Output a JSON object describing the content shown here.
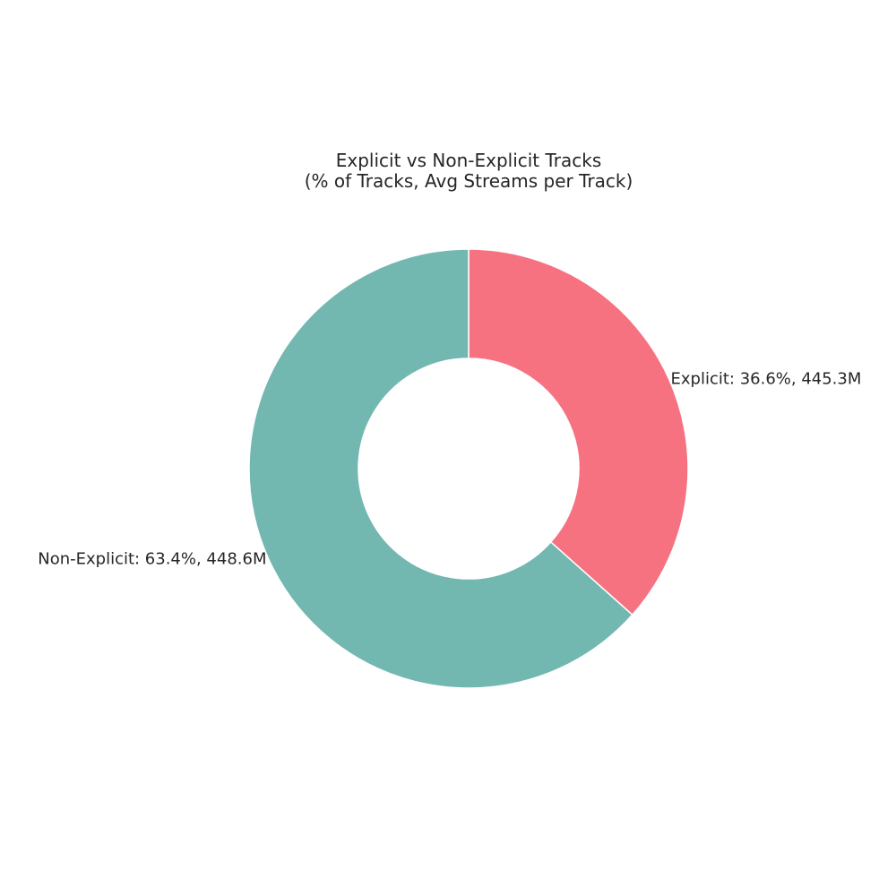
{
  "chart_data": {
    "type": "pie",
    "subtype": "donut",
    "title": "Explicit vs Non-Explicit Tracks",
    "subtitle": "(% of Tracks, Avg Streams per Track)",
    "categories": [
      "Explicit",
      "Non-Explicit"
    ],
    "values": [
      36.6,
      63.4
    ],
    "avg_streams": [
      "445.3M",
      "448.6M"
    ],
    "labels": [
      "Explicit: 36.6%, 445.3M",
      "Non-Explicit: 63.4%, 448.6M"
    ],
    "colors": [
      "#f67280",
      "#73b7b1"
    ],
    "start_angle_deg": 90,
    "direction": "clockwise",
    "legend": "none",
    "grid": false
  }
}
